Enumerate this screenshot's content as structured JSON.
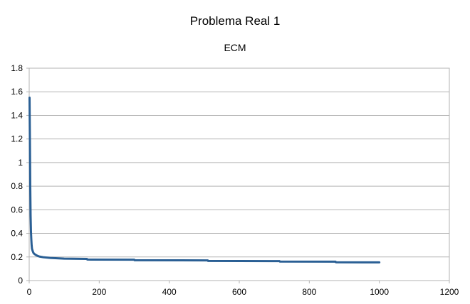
{
  "chart_data": {
    "type": "line",
    "title": "Problema Real 1",
    "subtitle": "ECM",
    "xlabel": "",
    "ylabel": "",
    "xlim": [
      0,
      1200
    ],
    "ylim": [
      0,
      1.8
    ],
    "xticks": [
      0,
      200,
      400,
      600,
      800,
      1000,
      1200
    ],
    "yticks": [
      0,
      0.2,
      0.4,
      0.6,
      0.8,
      1,
      1.2,
      1.4,
      1.6,
      1.8
    ],
    "ytick_labels": [
      "0",
      "0.2",
      "0.4",
      "0.6",
      "0.8",
      "1",
      "1.2",
      "1.4",
      "1.6",
      "1.8"
    ],
    "grid": "horizontal",
    "legend": "none",
    "series_color": "#2a5f94",
    "series": [
      {
        "x": [
          1,
          2,
          3,
          4,
          5,
          6,
          7,
          8,
          10,
          12,
          15,
          20,
          25,
          30,
          40,
          50,
          60,
          80,
          100,
          165,
          166,
          300,
          301,
          510,
          511,
          715,
          716,
          875,
          876,
          1000
        ],
        "y": [
          1.55,
          1.2,
          0.8,
          0.55,
          0.42,
          0.35,
          0.3,
          0.27,
          0.25,
          0.235,
          0.225,
          0.215,
          0.208,
          0.203,
          0.198,
          0.195,
          0.192,
          0.189,
          0.186,
          0.184,
          0.178,
          0.177,
          0.172,
          0.171,
          0.166,
          0.165,
          0.161,
          0.16,
          0.155,
          0.154
        ]
      }
    ]
  }
}
